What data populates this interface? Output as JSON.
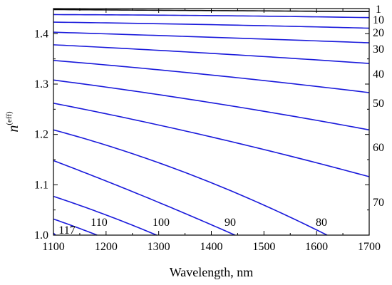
{
  "chart_data": {
    "type": "line",
    "xlabel": "Wavelength, nm",
    "ylabel": {
      "main": "n",
      "superscript": "(eff)"
    },
    "xlim": [
      1100,
      1700
    ],
    "ylim": [
      1.0,
      1.45
    ],
    "xticks": [
      "1100",
      "1200",
      "1300",
      "1400",
      "1500",
      "1600",
      "1700"
    ],
    "yticks": [
      "1.0",
      "1.1",
      "1.2",
      "1.3",
      "1.4"
    ],
    "grid": false,
    "series_color": "#1a1adb",
    "first_series_color": "#000000",
    "series": [
      {
        "name": "1",
        "x": [
          1100,
          1400,
          1700
        ],
        "y": [
          1.448,
          1.446,
          1.444
        ]
      },
      {
        "name": "10",
        "x": [
          1100,
          1400,
          1700
        ],
        "y": [
          1.438,
          1.436,
          1.432
        ]
      },
      {
        "name": "20",
        "x": [
          1100,
          1400,
          1700
        ],
        "y": [
          1.423,
          1.418,
          1.411
        ]
      },
      {
        "name": "30",
        "x": [
          1100,
          1400,
          1700
        ],
        "y": [
          1.403,
          1.393,
          1.382
        ]
      },
      {
        "name": "40",
        "x": [
          1100,
          1400,
          1700
        ],
        "y": [
          1.378,
          1.361,
          1.341
        ]
      },
      {
        "name": "50",
        "x": [
          1100,
          1400,
          1700
        ],
        "y": [
          1.347,
          1.318,
          1.283
        ]
      },
      {
        "name": "60",
        "x": [
          1100,
          1400,
          1700
        ],
        "y": [
          1.308,
          1.263,
          1.209
        ]
      },
      {
        "name": "70",
        "x": [
          1100,
          1400,
          1700
        ],
        "y": [
          1.262,
          1.195,
          1.116
        ]
      },
      {
        "name": "80",
        "x": [
          1100,
          1400,
          1620
        ],
        "y": [
          1.209,
          1.104,
          1.0
        ]
      },
      {
        "name": "90",
        "x": [
          1100,
          1300,
          1445
        ],
        "y": [
          1.148,
          1.065,
          1.0
        ]
      },
      {
        "name": "100",
        "x": [
          1100,
          1200,
          1296
        ],
        "y": [
          1.077,
          1.04,
          1.0
        ]
      },
      {
        "name": "110",
        "x": [
          1100,
          1140,
          1183
        ],
        "y": [
          1.032,
          1.017,
          1.0
        ]
      },
      {
        "name": "117",
        "x": [
          1100,
          1102,
          1104
        ],
        "y": [
          1.004,
          1.002,
          1.0
        ]
      }
    ]
  }
}
